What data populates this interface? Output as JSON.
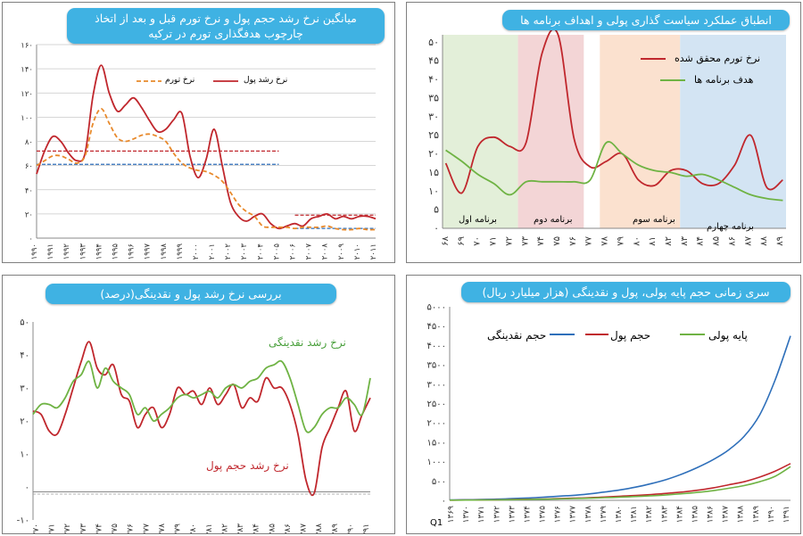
{
  "panels": [
    {
      "title": "میانگین نرخ رشد حجم پول و نرخ تورم قبل و بعد از اتخاذ چارچوب هدفگذاری تورم در ترکیه",
      "legend": [
        "نرخ رشد پول",
        "نرخ تورم"
      ]
    },
    {
      "title": "انطباق عملکرد سیاست گذاری پولی و اهداف برنامه ها",
      "legend": [
        "نرخ تورم محقق شده",
        "هدف برنامه ها"
      ],
      "band_labels": [
        "برنامه اول",
        "برنامه دوم",
        "برنامه سوم",
        "برنامه چهارم"
      ]
    },
    {
      "title": "بررسی نرخ رشد پول و نقدینگی(درصد)",
      "series_labels": [
        "نرخ رشد نقدینگی",
        "نرخ رشد حجم پول"
      ]
    },
    {
      "title": "سری زمانی حجم پایه پولی، پول و نقدینگی (هزار میلیارد ریال)",
      "legend": [
        "حجم نقدینگی",
        "حجم پول",
        "پایه پولی"
      ],
      "corner_text": "Q1"
    }
  ],
  "colors": {
    "red": "#c0272d",
    "orange": "#e8892b",
    "green": "#6fb344",
    "blue": "#2e6fba",
    "pill": "#3fb2e3"
  },
  "chart_data": [
    {
      "type": "line",
      "x_ticks": [
        "۱۹۹۰",
        "۱۹۹۱",
        "۱۹۹۲",
        "۱۹۹۳",
        "۱۹۹۴",
        "۱۹۹۵",
        "۱۹۹۶",
        "۱۹۹۷",
        "۱۹۹۸",
        "۱۹۹۹",
        "۲۰۰۰",
        "۲۰۰۱",
        "۲۰۰۲",
        "۲۰۰۳",
        "۲۰۰۴",
        "۲۰۰۵",
        "۲۰۰۶",
        "۲۰۰۷",
        "۲۰۰۸",
        "۲۰۰۹",
        "۲۰۱۰",
        "۲۰۱۱"
      ],
      "y_ticks": [
        "۰",
        "۲۰",
        "۴۰",
        "۶۰",
        "۸۰",
        "۱۰۰",
        "۱۲۰",
        "۱۴۰",
        "۱۶۰"
      ],
      "ylim": [
        0,
        160
      ],
      "x": [
        1990,
        1990.5,
        1991,
        1991.5,
        1992,
        1992.5,
        1993,
        1993.5,
        1994,
        1994.5,
        1995,
        1995.5,
        1996,
        1996.5,
        1997,
        1997.5,
        1998,
        1998.5,
        1999,
        1999.5,
        2000,
        2000.5,
        2001,
        2001.5,
        2002,
        2002.5,
        2003,
        2003.5,
        2004,
        2004.5,
        2005,
        2005.5,
        2006,
        2006.5,
        2007,
        2007.5,
        2008,
        2008.5,
        2009,
        2009.5,
        2010,
        2010.5,
        2011
      ],
      "series": [
        {
          "name": "نرخ رشد پول",
          "color": "#c0272d",
          "dash": false,
          "values": [
            53,
            72,
            84,
            80,
            70,
            64,
            70,
            118,
            143,
            120,
            105,
            110,
            116,
            108,
            97,
            88,
            90,
            98,
            103,
            68,
            50,
            65,
            90,
            60,
            30,
            18,
            14,
            18,
            20,
            12,
            8,
            10,
            12,
            10,
            16,
            18,
            20,
            16,
            18,
            16,
            18,
            18,
            16
          ]
        },
        {
          "name": "نرخ تورم",
          "color": "#e8892b",
          "dash": true,
          "values": [
            60,
            64,
            68,
            68,
            65,
            62,
            68,
            95,
            107,
            95,
            83,
            80,
            82,
            85,
            86,
            84,
            80,
            70,
            62,
            58,
            56,
            55,
            52,
            47,
            38,
            28,
            22,
            18,
            10,
            9,
            9,
            9,
            8,
            9,
            9,
            9,
            10,
            8,
            7,
            7,
            8,
            7,
            7
          ]
        }
      ],
      "reference_lines": [
        {
          "from": 1990,
          "to": 2005,
          "value": 72,
          "color": "#c0272d"
        },
        {
          "from": 1990,
          "to": 2005,
          "value": 61,
          "color": "#2e6fba"
        },
        {
          "from": 2006,
          "to": 2011,
          "value": 19,
          "color": "#c0272d"
        },
        {
          "from": 2006,
          "to": 2011,
          "value": 8,
          "color": "#2e6fba"
        }
      ]
    },
    {
      "type": "line",
      "x_ticks": [
        "۶۸",
        "۶۹",
        "۷۰",
        "۷۱",
        "۷۲",
        "۷۳",
        "۷۴",
        "۷۵",
        "۷۶",
        "۷۷",
        "۷۸",
        "۷۹",
        "۸۰",
        "۸۱",
        "۸۲",
        "۸۳",
        "۸۴",
        "۸۵",
        "۸۶",
        "۸۷",
        "۸۸",
        "۸۹"
      ],
      "y_ticks": [
        "۰",
        "۵",
        "۱۰",
        "۱۵",
        "۲۰",
        "۲۵",
        "۳۰",
        "۳۵",
        "۴۰",
        "۴۵",
        "۵۰"
      ],
      "ylim": [
        0,
        52
      ],
      "x": [
        68,
        69,
        70,
        71,
        72,
        73,
        74,
        75,
        76,
        77,
        78,
        79,
        80,
        81,
        82,
        83,
        84,
        85,
        86,
        87,
        88,
        89
      ],
      "bands": [
        {
          "from": 67.8,
          "to": 72.5,
          "color": "#e3efd9"
        },
        {
          "from": 72.5,
          "to": 76.6,
          "color": "#f3d5d6"
        },
        {
          "from": 77.6,
          "to": 82.6,
          "color": "#fbe1cf"
        },
        {
          "from": 82.6,
          "to": 89.2,
          "color": "#d3e4f3"
        }
      ],
      "series": [
        {
          "name": "نرخ تورم محقق شده",
          "color": "#c0272d",
          "values": [
            17.5,
            9.5,
            22,
            24.5,
            22,
            23,
            47,
            52,
            24,
            16.5,
            18,
            20,
            13,
            11.5,
            15.5,
            15.5,
            12,
            12,
            17,
            25,
            11,
            13
          ]
        },
        {
          "name": "هدف برنامه ها",
          "color": "#6fb344",
          "values": [
            21,
            18,
            14.5,
            12,
            9,
            12.5,
            12.5,
            12.5,
            12.5,
            13,
            23,
            20,
            17,
            15.5,
            15,
            14,
            14.5,
            13,
            11,
            9,
            8,
            7.5
          ]
        }
      ]
    },
    {
      "type": "line",
      "x_ticks": [
        "۱۳۷۰",
        "۱۳۷۱",
        "۱۳۷۲",
        "۱۳۷۳",
        "۱۳۷۴",
        "۱۳۷۵",
        "۱۳۷۶",
        "۱۳۷۷",
        "۱۳۷۸",
        "۱۳۷۹",
        "۱۳۸۰",
        "۱۳۸۱",
        "۱۳۸۲",
        "۱۳۸۳",
        "۱۳۸۴",
        "۱۳۸۵",
        "۱۳۸۶",
        "۱۳۸۷",
        "۱۳۸۸",
        "۱۳۸۹",
        "۱۳۹۰",
        "۱۳۹۱"
      ],
      "y_ticks": [
        "-۱۰",
        "۰",
        "۱۰",
        "۲۰",
        "۳۰",
        "۴۰",
        "۵۰"
      ],
      "ylim": [
        -10,
        50
      ],
      "x": [
        1370,
        1370.5,
        1371,
        1371.5,
        1372,
        1372.5,
        1373,
        1373.5,
        1374,
        1374.5,
        1375,
        1375.5,
        1376,
        1376.5,
        1377,
        1377.5,
        1378,
        1378.5,
        1379,
        1379.5,
        1380,
        1380.5,
        1381,
        1381.5,
        1382,
        1382.5,
        1383,
        1383.5,
        1384,
        1384.5,
        1385,
        1385.5,
        1386,
        1386.5,
        1387,
        1387.5,
        1388,
        1388.5,
        1389,
        1389.5,
        1390,
        1390.5,
        1391
      ],
      "series": [
        {
          "name": "نرخ رشد حجم پول",
          "color": "#c0272d",
          "values": [
            23,
            22,
            17,
            16,
            22,
            30,
            38,
            44,
            36,
            34,
            37,
            28,
            26,
            18,
            22,
            24,
            18,
            22,
            30,
            28,
            29,
            25,
            30,
            25,
            28,
            31,
            24,
            27,
            26,
            33,
            30,
            30,
            25,
            16,
            2,
            -2,
            12,
            18,
            24,
            29,
            17,
            22,
            27
          ]
        },
        {
          "name": "نرخ رشد نقدینگی",
          "color": "#6fb344",
          "values": [
            22,
            25,
            25,
            24,
            27,
            32,
            34,
            38,
            30,
            36,
            32,
            30,
            28,
            22,
            24,
            20,
            22,
            24,
            27,
            28,
            27,
            28,
            29,
            27,
            30,
            31,
            30,
            32,
            33,
            36,
            37,
            38,
            33,
            25,
            17,
            18,
            22,
            24,
            24,
            27,
            25,
            22,
            33
          ]
        }
      ]
    },
    {
      "type": "line",
      "x_ticks": [
        "۱۳۶۹",
        "۱۳۷۰",
        "۱۳۷۱",
        "۱۳۷۲",
        "۱۳۷۳",
        "۱۳۷۴",
        "۱۳۷۵",
        "۱۳۷۶",
        "۱۳۷۷",
        "۱۳۷۸",
        "۱۳۷۹",
        "۱۳۸۰",
        "۱۳۸۱",
        "۱۳۸۲",
        "۱۳۸۳",
        "۱۳۸۴",
        "۱۳۸۵",
        "۱۳۸۶",
        "۱۳۸۷",
        "۱۳۸۸",
        "۱۳۸۹",
        "۱۳۹۰",
        "۱۳۹۱"
      ],
      "y_ticks": [
        "۰",
        "۵۰۰",
        "۱۰۰۰",
        "۱۵۰۰",
        "۲۰۰۰",
        "۲۵۰۰",
        "۳۰۰۰",
        "۳۵۰۰",
        "۴۰۰۰",
        "۴۵۰۰",
        "۵۰۰۰"
      ],
      "ylim": [
        0,
        5000
      ],
      "x": [
        1369,
        1370,
        1371,
        1372,
        1373,
        1374,
        1375,
        1376,
        1377,
        1378,
        1379,
        1380,
        1381,
        1382,
        1383,
        1384,
        1385,
        1386,
        1387,
        1388,
        1389,
        1390,
        1391
      ],
      "series": [
        {
          "name": "حجم نقدینگی",
          "color": "#2e6fba",
          "values": [
            10,
            15,
            22,
            30,
            45,
            60,
            80,
            105,
            130,
            165,
            215,
            270,
            340,
            430,
            540,
            680,
            850,
            1050,
            1300,
            1650,
            2200,
            3100,
            4250
          ]
        },
        {
          "name": "حجم پول",
          "color": "#c0272d",
          "values": [
            5,
            7,
            10,
            14,
            20,
            27,
            35,
            45,
            55,
            68,
            85,
            105,
            125,
            150,
            180,
            215,
            260,
            320,
            400,
            480,
            600,
            750,
            950
          ]
        },
        {
          "name": "پایه پولی",
          "color": "#6fb344",
          "values": [
            4,
            6,
            9,
            12,
            17,
            23,
            30,
            38,
            46,
            55,
            68,
            82,
            98,
            118,
            140,
            170,
            205,
            250,
            310,
            380,
            480,
            620,
            870
          ]
        }
      ]
    }
  ]
}
